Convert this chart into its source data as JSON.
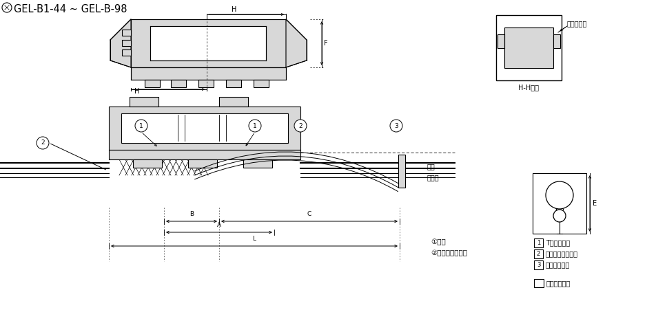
{
  "title": "GEL-B1-44 ~ GEL-B-98",
  "bg_color": "#ffffff",
  "line_color": "#000000",
  "gray_fill": "#cccccc",
  "light_gray": "#d8d8d8",
  "labels": {
    "trunk": "帹線",
    "branch": "分岐線",
    "legend1_a": "①導体",
    "legend1_b": "②ケーブルシース",
    "legend2_1": "T型コネクタ",
    "legend2_2": "ジェルクロージャ",
    "legend2_3": "ケーブルタイ",
    "company": "弊社該当製品",
    "hh_section": "H-H断面",
    "stopper": "ストッパー",
    "dim_H": "H",
    "dim_F": "F",
    "dim_B": "B",
    "dim_A": "A",
    "dim_C": "C",
    "dim_L": "L",
    "dim_E": "E"
  }
}
